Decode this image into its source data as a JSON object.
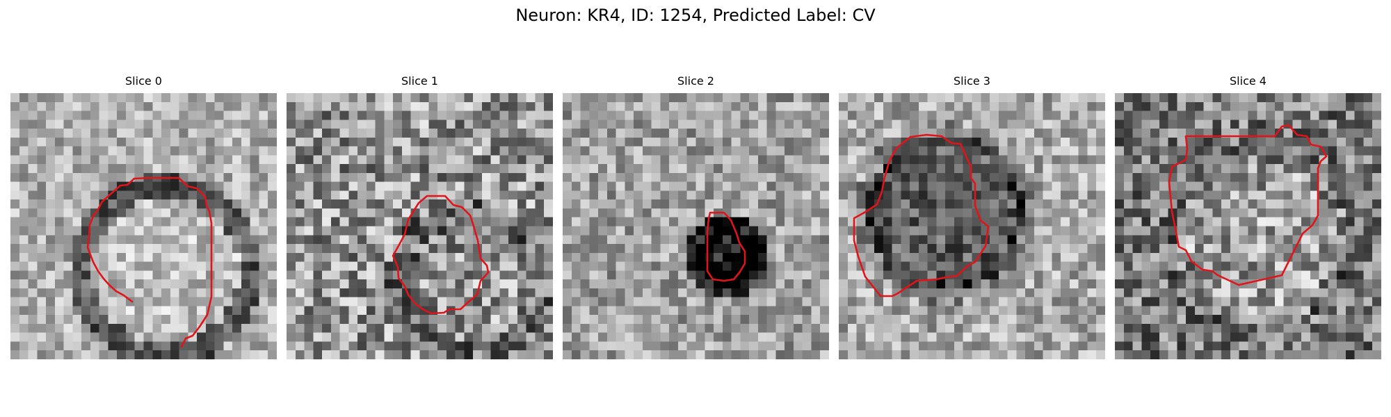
{
  "figure": {
    "title": "Neuron: KR4, ID: 1254, Predicted Label: CV"
  },
  "colors": {
    "contour": "#e0141a",
    "background": "#ffffff",
    "colormap": "gray"
  },
  "slices": [
    {
      "title": "Slice 0",
      "contour_color": "#e0141a"
    },
    {
      "title": "Slice 1",
      "contour_color": "#e0141a"
    },
    {
      "title": "Slice 2",
      "contour_color": "#e0141a"
    },
    {
      "title": "Slice 3",
      "contour_color": "#e0141a"
    },
    {
      "title": "Slice 4",
      "contour_color": "#e0141a"
    }
  ]
}
